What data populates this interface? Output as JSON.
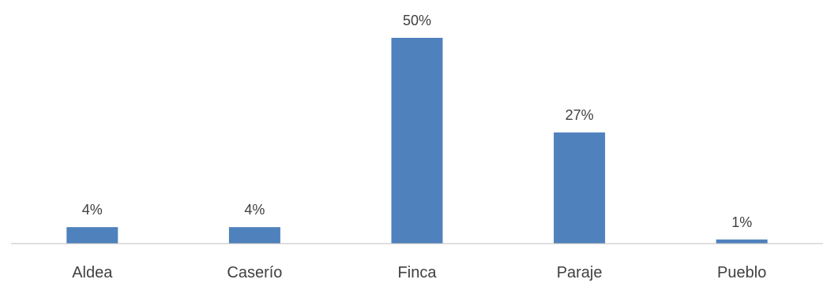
{
  "chart_data": {
    "type": "bar",
    "categories": [
      "Aldea",
      "Caserío",
      "Finca",
      "Paraje",
      "Pueblo"
    ],
    "values": [
      4,
      4,
      50,
      27,
      1
    ],
    "data_labels": [
      "4%",
      "4%",
      "50%",
      "27%",
      "1%"
    ],
    "unit": "%",
    "ylim": [
      0,
      50
    ],
    "grid": false,
    "legend": "none",
    "bar_color": "#4f81bd",
    "axis_color": "#bfbfbf",
    "text_color": "#404040"
  }
}
